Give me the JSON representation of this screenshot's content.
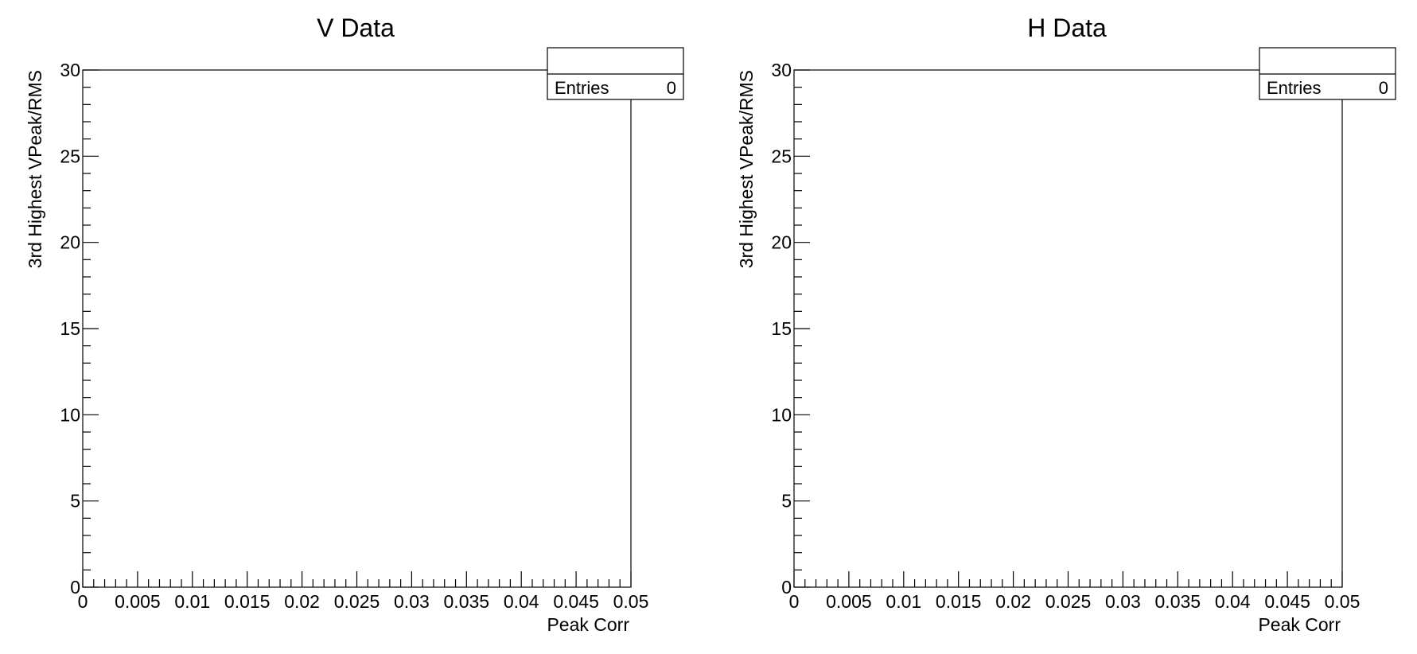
{
  "chart_data": [
    {
      "type": "scatter",
      "title": "V Data",
      "xlabel": "Peak Corr",
      "ylabel": "3rd Highest VPeak/RMS",
      "xlim": [
        0,
        0.05
      ],
      "ylim": [
        0,
        30
      ],
      "x_ticks": [
        0,
        0.005,
        0.01,
        0.015,
        0.02,
        0.025,
        0.03,
        0.035,
        0.04,
        0.045,
        0.05
      ],
      "x_tick_labels": [
        "0",
        "0.005",
        "0.01",
        "0.015",
        "0.02",
        "0.025",
        "0.03",
        "0.035",
        "0.04",
        "0.045",
        "0.05"
      ],
      "y_ticks": [
        0,
        5,
        10,
        15,
        20,
        25,
        30
      ],
      "y_tick_labels": [
        "0",
        "5",
        "10",
        "15",
        "20",
        "25",
        "30"
      ],
      "points": [],
      "grid": false,
      "stats_box": {
        "header": "",
        "entries_label": "Entries",
        "entries_value": "0",
        "placement": "top-right"
      }
    },
    {
      "type": "scatter",
      "title": "H Data",
      "xlabel": "Peak Corr",
      "ylabel": "3rd Highest VPeak/RMS",
      "xlim": [
        0,
        0.05
      ],
      "ylim": [
        0,
        30
      ],
      "x_ticks": [
        0,
        0.005,
        0.01,
        0.015,
        0.02,
        0.025,
        0.03,
        0.035,
        0.04,
        0.045,
        0.05
      ],
      "x_tick_labels": [
        "0",
        "0.005",
        "0.01",
        "0.015",
        "0.02",
        "0.025",
        "0.03",
        "0.035",
        "0.04",
        "0.045",
        "0.05"
      ],
      "y_ticks": [
        0,
        5,
        10,
        15,
        20,
        25,
        30
      ],
      "y_tick_labels": [
        "0",
        "5",
        "10",
        "15",
        "20",
        "25",
        "30"
      ],
      "points": [],
      "grid": false,
      "stats_box": {
        "header": "",
        "entries_label": "Entries",
        "entries_value": "0",
        "placement": "top-right"
      }
    }
  ]
}
